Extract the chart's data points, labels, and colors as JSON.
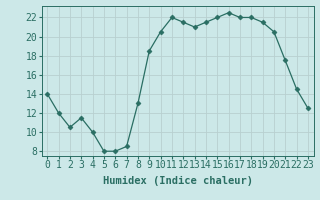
{
  "x": [
    0,
    1,
    2,
    3,
    4,
    5,
    6,
    7,
    8,
    9,
    10,
    11,
    12,
    13,
    14,
    15,
    16,
    17,
    18,
    19,
    20,
    21,
    22,
    23
  ],
  "y": [
    14,
    12,
    10.5,
    11.5,
    10,
    8,
    8,
    8.5,
    13,
    18.5,
    20.5,
    22,
    21.5,
    21,
    21.5,
    22,
    22.5,
    22,
    22,
    21.5,
    20.5,
    17.5,
    14.5,
    12.5
  ],
  "line_color": "#2a6e63",
  "marker": "D",
  "marker_size": 2.5,
  "bg_color": "#cce8e8",
  "grid_color": "#b8d0d0",
  "xlabel": "Humidex (Indice chaleur)",
  "xlabel_fontsize": 7.5,
  "ylabel_ticks": [
    8,
    10,
    12,
    14,
    16,
    18,
    20,
    22
  ],
  "xlim": [
    -0.5,
    23.5
  ],
  "ylim": [
    7.5,
    23.2
  ],
  "tick_fontsize": 7,
  "title": ""
}
